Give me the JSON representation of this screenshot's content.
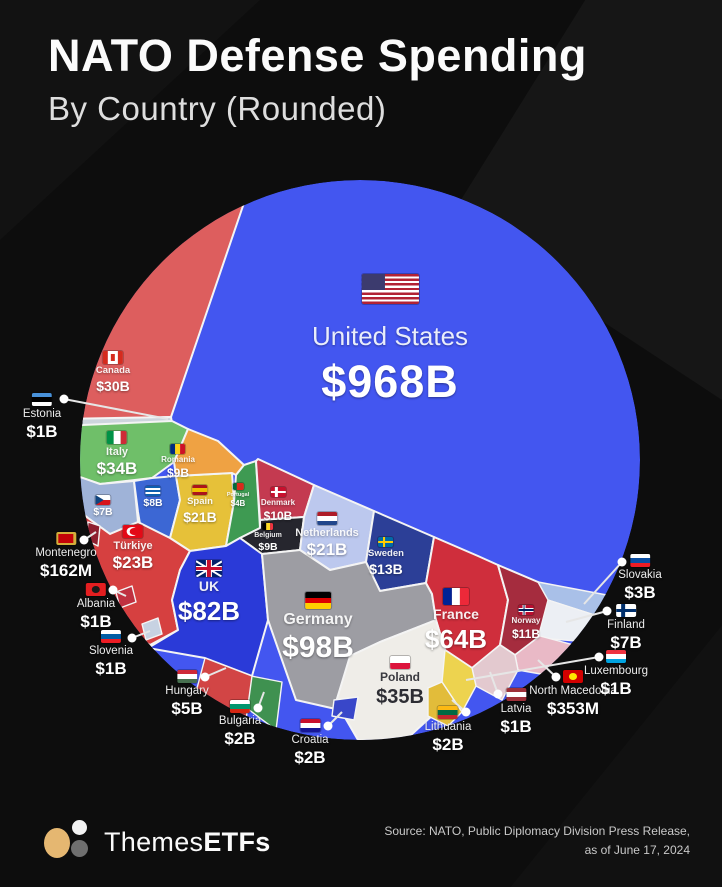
{
  "header": {
    "title": "NATO Defense Spending",
    "subtitle": "By Country (Rounded)"
  },
  "footer": {
    "brand_regular": "Themes",
    "brand_bold": "ETFs",
    "source_line1": "Source: NATO, Public Diplomacy Division Press Release,",
    "source_line2": "as of June 17, 2024"
  },
  "chart_data": {
    "type": "circular-treemap",
    "title": "NATO Defense Spending By Country (Rounded)",
    "unit": "USD",
    "legend_position": "none",
    "countries": [
      {
        "id": "us",
        "name": "United States",
        "value": "$968B",
        "value_usd_billion": 968,
        "color": "#4356f0",
        "label": "in",
        "flag": {
          "type": "us",
          "colors": [
            "#b22234",
            "#ffffff",
            "#3c3b6e"
          ]
        }
      },
      {
        "id": "germany",
        "name": "Germany",
        "value": "$98B",
        "value_usd_billion": 98,
        "color": "#9d9da3",
        "label": "in",
        "flag": {
          "type": "h",
          "colors": [
            "#000000",
            "#dd0000",
            "#ffce00"
          ]
        }
      },
      {
        "id": "uk",
        "name": "UK",
        "value": "$82B",
        "value_usd_billion": 82,
        "color": "#2a3ad8",
        "label": "in",
        "flag": {
          "type": "uk",
          "colors": [
            "#012169",
            "#ffffff",
            "#c8102e"
          ]
        }
      },
      {
        "id": "france",
        "name": "France",
        "value": "$64B",
        "value_usd_billion": 64,
        "color": "#cf2e3c",
        "label": "in",
        "flag": {
          "type": "v",
          "colors": [
            "#002395",
            "#ffffff",
            "#ed2939"
          ]
        }
      },
      {
        "id": "poland",
        "name": "Poland",
        "value": "$35B",
        "value_usd_billion": 35,
        "color": "#efede8",
        "label": "in",
        "flag": {
          "type": "h",
          "colors": [
            "#ffffff",
            "#dc143c"
          ]
        }
      },
      {
        "id": "italy",
        "name": "Italy",
        "value": "$34B",
        "value_usd_billion": 34,
        "color": "#6fbf69",
        "label": "in",
        "flag": {
          "type": "v",
          "colors": [
            "#009246",
            "#ffffff",
            "#ce2b37"
          ]
        }
      },
      {
        "id": "canada",
        "name": "Canada",
        "value": "$30B",
        "value_usd_billion": 30,
        "color": "#dd5e5e",
        "label": "in",
        "flag": {
          "type": "canada",
          "colors": [
            "#d52b1e",
            "#ffffff"
          ]
        }
      },
      {
        "id": "turkiye",
        "name": "Türkiye",
        "value": "$23B",
        "value_usd_billion": 23,
        "color": "#d64040",
        "label": "in",
        "flag": {
          "type": "crescent",
          "colors": [
            "#e30a17",
            "#ffffff"
          ]
        }
      },
      {
        "id": "spain",
        "name": "Spain",
        "value": "$21B",
        "value_usd_billion": 21,
        "color": "#e6c139",
        "label": "in",
        "flag": {
          "type": "h",
          "colors": [
            "#aa151b",
            "#f1bf00",
            "#aa151b"
          ]
        }
      },
      {
        "id": "netherlands",
        "name": "Netherlands",
        "value": "$21B",
        "value_usd_billion": 21,
        "color": "#bcc8ee",
        "label": "in",
        "flag": {
          "type": "h",
          "colors": [
            "#ae1c28",
            "#ffffff",
            "#21468b"
          ]
        }
      },
      {
        "id": "sweden",
        "name": "Sweden",
        "value": "$13B",
        "value_usd_billion": 13,
        "color": "#2c3f97",
        "label": "in",
        "flag": {
          "type": "cross",
          "colors": [
            "#006aa7",
            "#fecc02"
          ]
        }
      },
      {
        "id": "norway",
        "name": "Norway",
        "value": "$11B",
        "value_usd_billion": 11,
        "color": "#a52c3e",
        "label": "in",
        "flag": {
          "type": "cross2",
          "colors": [
            "#ba0c2f",
            "#ffffff",
            "#00205b"
          ]
        }
      },
      {
        "id": "denmark",
        "name": "Denmark",
        "value": "$10B",
        "value_usd_billion": 10,
        "color": "#c43a50",
        "label": "in",
        "flag": {
          "type": "cross",
          "colors": [
            "#c8102e",
            "#ffffff"
          ]
        }
      },
      {
        "id": "belgium",
        "name": "Belgium",
        "value": "$9B",
        "value_usd_billion": 9,
        "color": "#26262e",
        "label": "in",
        "flag": {
          "type": "v",
          "colors": [
            "#000000",
            "#fdda24",
            "#ef3340"
          ]
        }
      },
      {
        "id": "romania",
        "name": "Romania",
        "value": "$9B",
        "value_usd_billion": 9,
        "color": "#efa243",
        "label": "in",
        "flag": {
          "type": "v",
          "colors": [
            "#002b7f",
            "#fcd116",
            "#ce1126"
          ]
        }
      },
      {
        "id": "greece",
        "name": "Greece",
        "value": "$8B",
        "value_usd_billion": 8,
        "color": "#3c67d4",
        "label": "in",
        "flag": {
          "type": "h",
          "colors": [
            "#0d5eaf",
            "#ffffff",
            "#0d5eaf",
            "#ffffff",
            "#0d5eaf"
          ]
        }
      },
      {
        "id": "czechia",
        "name": "Czechia",
        "value": "$7B",
        "value_usd_billion": 7,
        "color": "#9fb3d8",
        "label": "in",
        "flag": {
          "type": "czech",
          "colors": [
            "#ffffff",
            "#d7141a",
            "#11457e"
          ]
        }
      },
      {
        "id": "finland",
        "name": "Finland",
        "value": "$7B",
        "value_usd_billion": 7,
        "color": "#eceff4",
        "label": "out",
        "flag": {
          "type": "cross",
          "colors": [
            "#ffffff",
            "#002f6c"
          ]
        }
      },
      {
        "id": "hungary",
        "name": "Hungary",
        "value": "$5B",
        "value_usd_billion": 5,
        "color": "#d24545",
        "label": "out",
        "flag": {
          "type": "h",
          "colors": [
            "#ce2939",
            "#ffffff",
            "#477050"
          ]
        }
      },
      {
        "id": "portugal",
        "name": "Portugal",
        "value": "$4B",
        "value_usd_billion": 4,
        "color": "#3e9a52",
        "label": "in",
        "flag": {
          "type": "v2",
          "colors": [
            "#046a38",
            "#da291c"
          ]
        }
      },
      {
        "id": "slovakia",
        "name": "Slovakia",
        "value": "$3B",
        "value_usd_billion": 3,
        "color": "#a9c0e8",
        "label": "out",
        "flag": {
          "type": "h",
          "colors": [
            "#ffffff",
            "#0b4ea2",
            "#ee1c25"
          ]
        }
      },
      {
        "id": "bulgaria",
        "name": "Bulgaria",
        "value": "$2B",
        "value_usd_billion": 2,
        "color": "#3f9150",
        "label": "out",
        "flag": {
          "type": "h",
          "colors": [
            "#ffffff",
            "#00966e",
            "#d62612"
          ]
        }
      },
      {
        "id": "croatia",
        "name": "Croatia",
        "value": "$2B",
        "value_usd_billion": 2,
        "color": "#3947c9",
        "label": "out",
        "flag": {
          "type": "h",
          "colors": [
            "#c8102e",
            "#ffffff",
            "#171796"
          ]
        }
      },
      {
        "id": "lithuania",
        "name": "Lithuania",
        "value": "$2B",
        "value_usd_billion": 2,
        "color": "#e2bc3a",
        "label": "out",
        "flag": {
          "type": "h",
          "colors": [
            "#fdb913",
            "#006a44",
            "#c1272d"
          ]
        }
      },
      {
        "id": "latvia",
        "name": "Latvia",
        "value": "$1B",
        "value_usd_billion": 1,
        "color": "#e3c9cf",
        "label": "out",
        "flag": {
          "type": "h",
          "colors": [
            "#9e3039",
            "#ffffff",
            "#9e3039"
          ]
        }
      },
      {
        "id": "estonia",
        "name": "Estonia",
        "value": "$1B",
        "value_usd_billion": 1,
        "color": "#cdd5dd",
        "label": "out",
        "flag": {
          "type": "h",
          "colors": [
            "#4891d9",
            "#000000",
            "#ffffff"
          ]
        }
      },
      {
        "id": "slovenia",
        "name": "Slovenia",
        "value": "$1B",
        "value_usd_billion": 1,
        "color": "#c7d2e2",
        "label": "out",
        "flag": {
          "type": "h",
          "colors": [
            "#ffffff",
            "#005da4",
            "#ed1c24"
          ]
        }
      },
      {
        "id": "luxembourg",
        "name": "Luxembourg",
        "value": "$1B",
        "value_usd_billion": 1,
        "color": "#edd34f",
        "label": "out",
        "flag": {
          "type": "h",
          "colors": [
            "#ef3340",
            "#ffffff",
            "#00a3e0"
          ]
        }
      },
      {
        "id": "albania",
        "name": "Albania",
        "value": "$1B",
        "value_usd_billion": 1,
        "color": "#c03040",
        "label": "out",
        "flag": {
          "type": "emblem",
          "colors": [
            "#e41e20",
            "#1a1a1a"
          ]
        }
      },
      {
        "id": "north_macedonia",
        "name": "North Macedonia",
        "value": "$353M",
        "value_usd_billion": 0.353,
        "color": "#e9b9c6",
        "label": "out",
        "flag": {
          "type": "emblem",
          "colors": [
            "#d20000",
            "#ffe600"
          ]
        }
      },
      {
        "id": "montenegro",
        "name": "Montenegro",
        "value": "$162M",
        "value_usd_billion": 0.162,
        "color": "#8f1f2f",
        "label": "out",
        "flag": {
          "type": "border",
          "colors": [
            "#c40308",
            "#d3ae3b"
          ]
        }
      }
    ]
  }
}
